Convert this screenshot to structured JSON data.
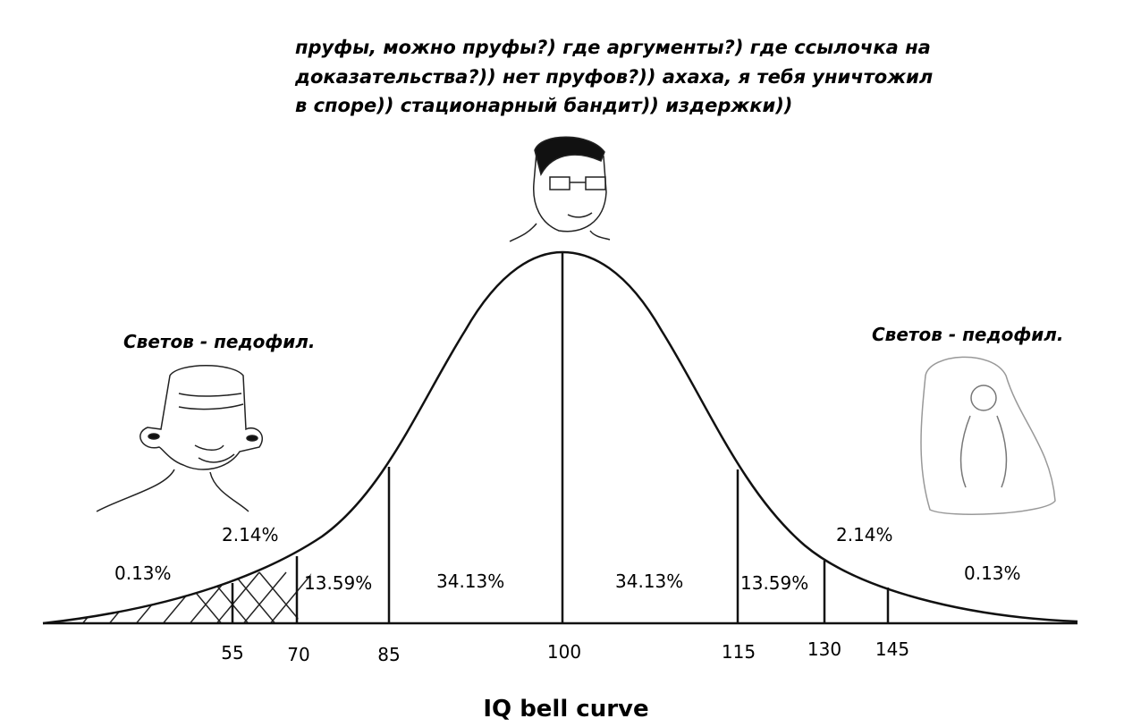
{
  "caption": {
    "lines": [
      "пруфы, можно пруфы?) где аргументы?) где ссылочка на",
      "доказательства?)) нет пруфов?)) ахаха, я тебя уничтожил",
      "в споре)) стационарный бандит)) издержки))"
    ]
  },
  "left_label": "Светов - педофил.",
  "right_label": "Светов - педофил.",
  "regions": [
    "0.13%",
    "2.14%",
    "13.59%",
    "34.13%",
    "34.13%",
    "13.59%",
    "2.14%",
    "0.13%"
  ],
  "axis_labels": [
    "55",
    "70",
    "85",
    "100",
    "115",
    "130",
    "145"
  ],
  "title": "IQ bell curve"
}
